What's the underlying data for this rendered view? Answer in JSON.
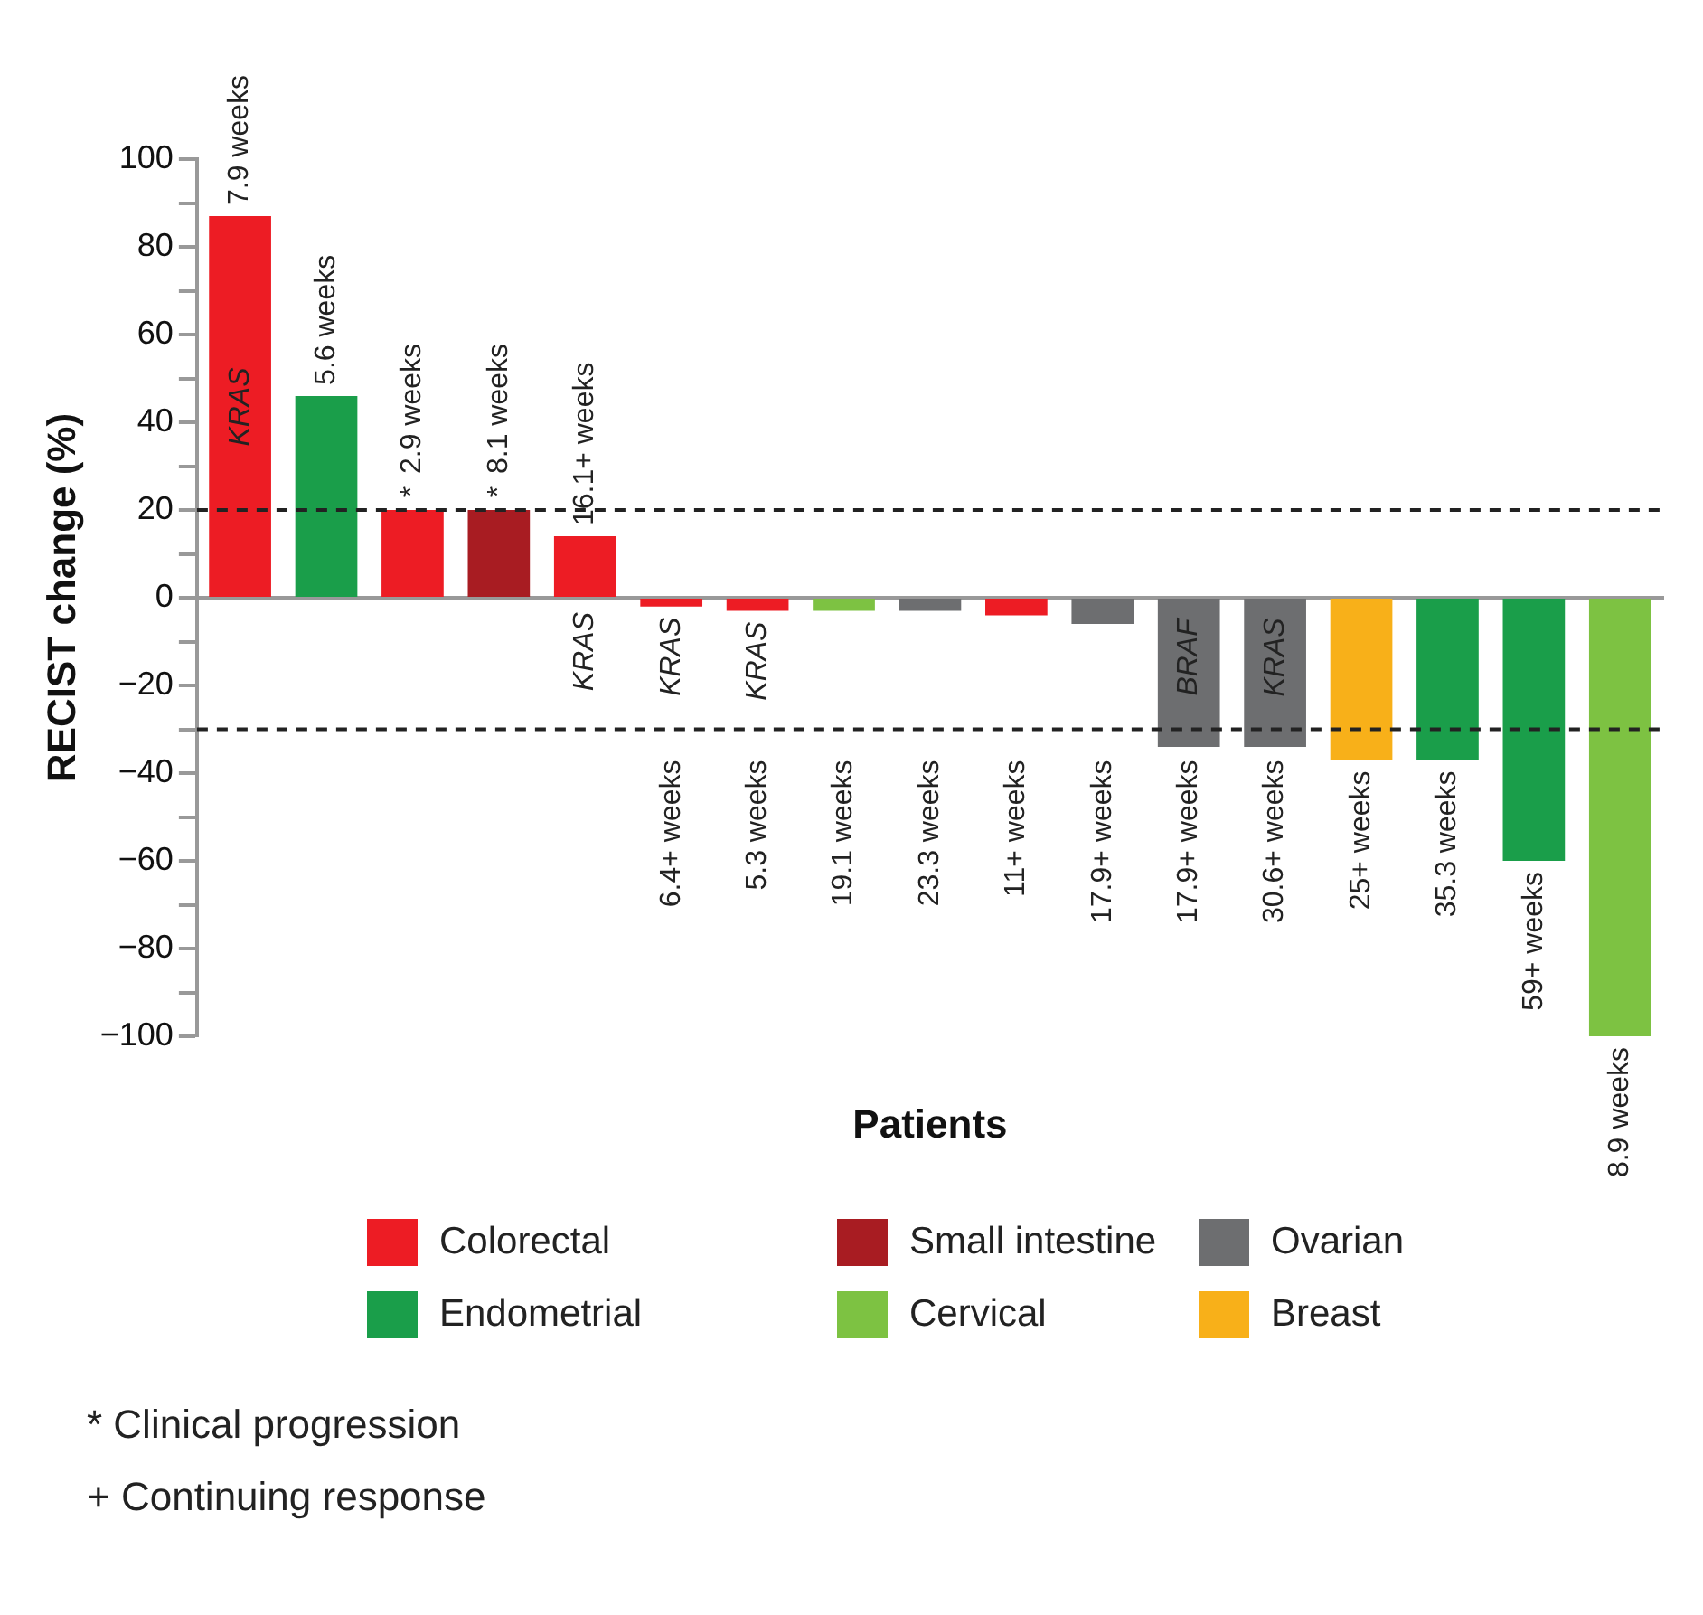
{
  "chart_data": {
    "type": "bar",
    "xlabel": "Patients",
    "ylabel": "RECIST change (%)",
    "categories": [
      "7.9 weeks",
      "5.6 weeks",
      "2.9 weeks",
      "8.1 weeks",
      "16.1+ weeks",
      "6.4+ weeks",
      "5.3 weeks",
      "19.1 weeks",
      "23.3 weeks",
      "11+ weeks",
      "17.9+ weeks",
      "17.9+ weeks",
      "30.6+ weeks",
      "25+ weeks",
      "35.3 weeks",
      "59+ weeks",
      "8.9 weeks"
    ],
    "series": [
      {
        "name": "Colorectal",
        "color": "#ed1c24",
        "values": [
          87,
          null,
          20,
          null,
          14,
          -2,
          -3,
          null,
          null,
          -4,
          null,
          null,
          null,
          null,
          null,
          null,
          null
        ],
        "value_labels": [
          "KRAS",
          null,
          "*",
          null,
          "KRAS",
          "KRAS",
          "KRAS",
          null,
          null,
          null,
          null,
          null,
          null,
          null,
          null,
          null,
          null
        ]
      },
      {
        "name": "Small intestine",
        "color": "#a81c22",
        "values": [
          null,
          null,
          null,
          20,
          null,
          null,
          null,
          null,
          null,
          null,
          null,
          null,
          null,
          null,
          null,
          null,
          null
        ],
        "value_labels": [
          null,
          null,
          null,
          "*",
          null,
          null,
          null,
          null,
          null,
          null,
          null,
          null,
          null,
          null,
          null,
          null,
          null
        ]
      },
      {
        "name": "Ovarian",
        "color": "#6d6e70",
        "values": [
          null,
          null,
          null,
          null,
          null,
          null,
          null,
          null,
          -3,
          null,
          -6,
          -34,
          -34,
          null,
          null,
          null,
          null
        ],
        "value_labels": [
          null,
          null,
          null,
          null,
          null,
          null,
          null,
          null,
          null,
          null,
          null,
          "BRAF",
          "KRAS",
          null,
          null,
          null,
          null
        ]
      },
      {
        "name": "Endometrial",
        "color": "#1a9e4a",
        "values": [
          null,
          46,
          null,
          null,
          null,
          null,
          null,
          null,
          null,
          null,
          null,
          null,
          null,
          null,
          -37,
          -60,
          null
        ]
      },
      {
        "name": "Cervical",
        "color": "#7dc242",
        "values": [
          null,
          null,
          null,
          null,
          null,
          null,
          null,
          -3,
          null,
          null,
          null,
          null,
          null,
          null,
          null,
          null,
          -100
        ]
      },
      {
        "name": "Breast",
        "color": "#f8b019",
        "values": [
          null,
          null,
          null,
          null,
          null,
          null,
          null,
          null,
          null,
          null,
          null,
          null,
          null,
          -37,
          null,
          null,
          null
        ]
      }
    ],
    "ylim": [
      -100,
      100
    ],
    "yticks": [
      -100,
      {
        "value": -90,
        "label": null
      },
      -80,
      {
        "value": -70,
        "label": null
      },
      -60,
      {
        "value": -50,
        "label": null
      },
      -40,
      {
        "value": -30,
        "label": null
      },
      -20,
      {
        "value": -10,
        "label": null
      },
      0,
      {
        "value": 10,
        "label": null
      },
      20,
      {
        "value": 30,
        "label": null
      },
      40,
      {
        "value": 50,
        "label": null
      },
      60,
      {
        "value": 70,
        "label": null
      },
      80,
      {
        "value": 90,
        "label": null
      },
      100
    ],
    "ref_lines": [
      {
        "axis": "y",
        "value": 20,
        "color": "#222222",
        "line_style": "dashed"
      },
      {
        "axis": "y",
        "value": -30,
        "color": "#222222",
        "line_style": "dashed"
      }
    ],
    "annotations": [
      "* Clinical progression",
      "+ Continuing response"
    ],
    "legend": "bottom",
    "tick_labels": "y"
  }
}
